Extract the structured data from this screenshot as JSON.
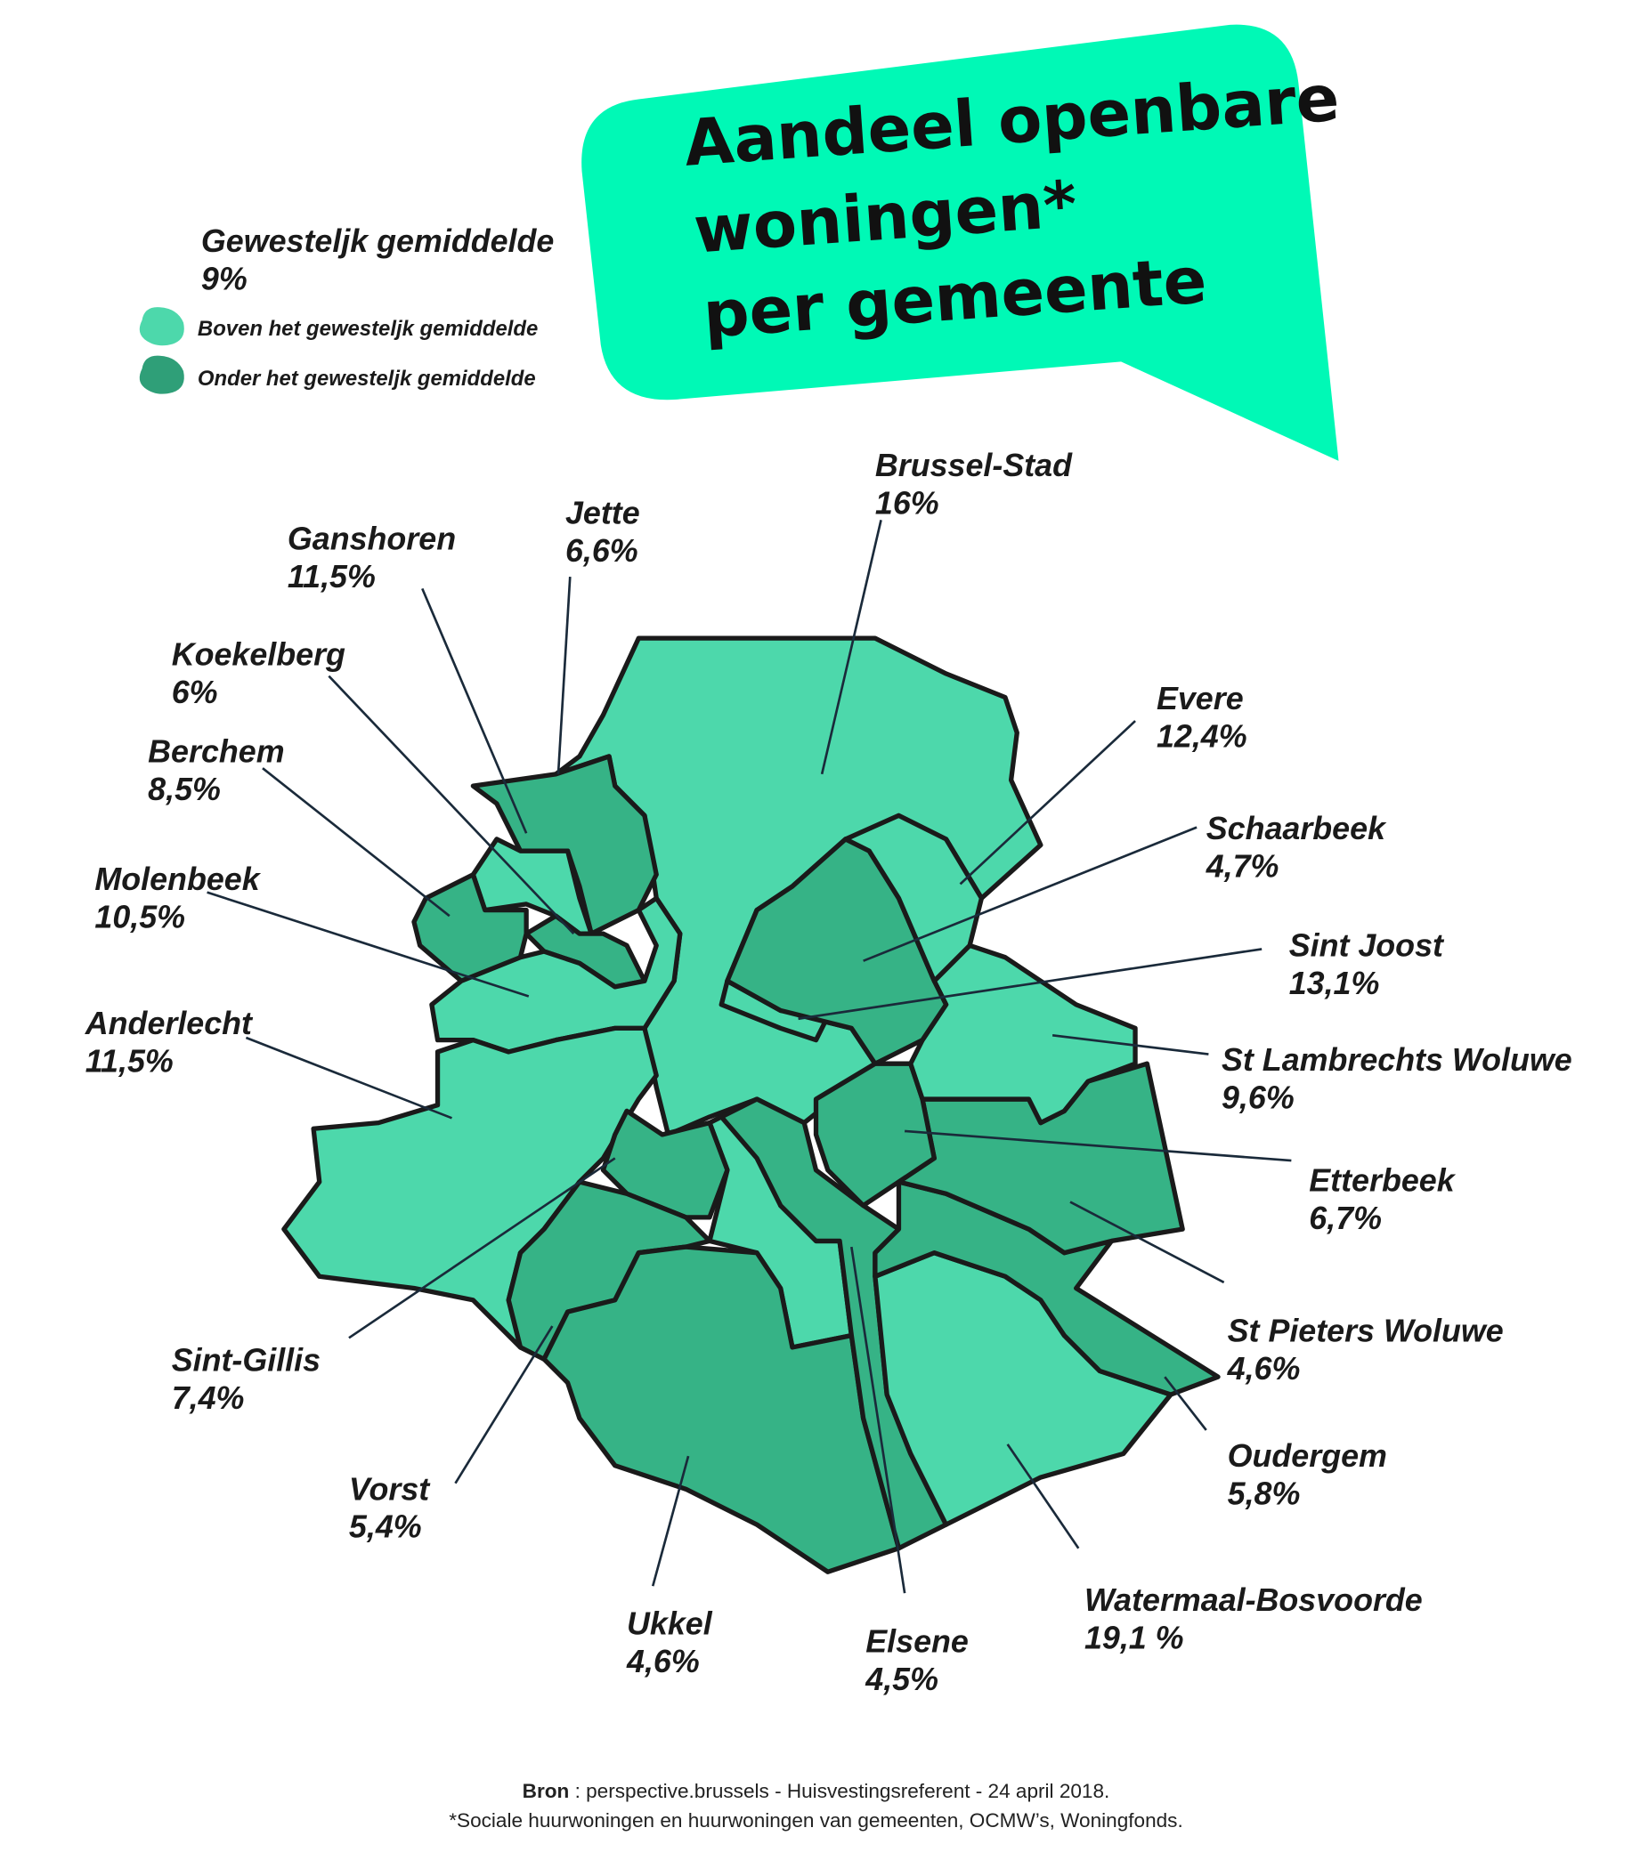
{
  "title": {
    "lines": [
      "Aandeel openbare",
      "woningen*",
      "per gemeente"
    ]
  },
  "legend": {
    "average_label": "Gewesteljk gemiddelde",
    "average_value": "9%",
    "items": [
      {
        "label": "Boven het gewesteljk gemiddelde",
        "color": "#4dd8ab"
      },
      {
        "label": "Onder het gewesteljk gemiddelde",
        "color": "#2f9f78"
      }
    ]
  },
  "municipalities": [
    {
      "name": "Brussel-Stad",
      "value": "16%",
      "color": "#4dd8ab"
    },
    {
      "name": "Jette",
      "value": "6,6%",
      "color": "#36b386"
    },
    {
      "name": "Ganshoren",
      "value": "11,5%",
      "color": "#4dd8ab"
    },
    {
      "name": "Koekelberg",
      "value": "6%",
      "color": "#36b386"
    },
    {
      "name": "Berchem",
      "value": "8,5%",
      "color": "#36b386"
    },
    {
      "name": "Molenbeek",
      "value": "10,5%",
      "color": "#4dd8ab"
    },
    {
      "name": "Anderlecht",
      "value": "11,5%",
      "color": "#4dd8ab"
    },
    {
      "name": "Sint-Gillis",
      "value": "7,4%",
      "color": "#36b386"
    },
    {
      "name": "Vorst",
      "value": "5,4%",
      "color": "#36b386"
    },
    {
      "name": "Ukkel",
      "value": "4,6%",
      "color": "#36b386"
    },
    {
      "name": "Elsene",
      "value": "4,5%",
      "color": "#36b386"
    },
    {
      "name": "Watermaal-Bosvoorde",
      "value": "19,1 %",
      "color": "#4dd8ab"
    },
    {
      "name": "Oudergem",
      "value": "5,8%",
      "color": "#36b386"
    },
    {
      "name": "St Pieters Woluwe",
      "value": "4,6%",
      "color": "#36b386"
    },
    {
      "name": "Etterbeek",
      "value": "6,7%",
      "color": "#36b386"
    },
    {
      "name": "St Lambrechts Woluwe",
      "value": "9,6%",
      "color": "#4dd8ab"
    },
    {
      "name": "Sint Joost",
      "value": "13,1%",
      "color": "#4dd8ab"
    },
    {
      "name": "Schaarbeek",
      "value": "4,7%",
      "color": "#36b386"
    },
    {
      "name": "Evere",
      "value": "12,4%",
      "color": "#4dd8ab"
    }
  ],
  "source": {
    "label": "Bron",
    "text": " : perspective.brussels - Huisvestingsreferent  - 24 april 2018.",
    "note": "*Sociale huurwoningen en huurwoningen van gemeenten, OCMW’s, Woningfonds."
  }
}
